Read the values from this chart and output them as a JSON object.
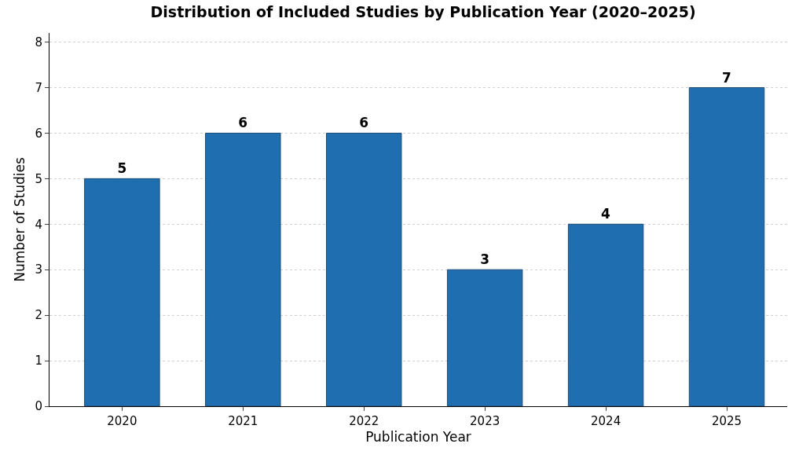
{
  "chart_data": {
    "type": "bar",
    "title": "Distribution of Included Studies by Publication Year (2020–2025)",
    "xlabel": "Publication Year",
    "ylabel": "Number of Studies",
    "categories": [
      "2020",
      "2021",
      "2022",
      "2023",
      "2024",
      "2025"
    ],
    "values": [
      5,
      6,
      6,
      3,
      4,
      7
    ],
    "color": "#1f6fb0",
    "ylim": [
      0,
      8.2
    ],
    "yticks": [
      0,
      1,
      2,
      3,
      4,
      5,
      6,
      7,
      8
    ],
    "grid": "y",
    "data_labels": true
  }
}
